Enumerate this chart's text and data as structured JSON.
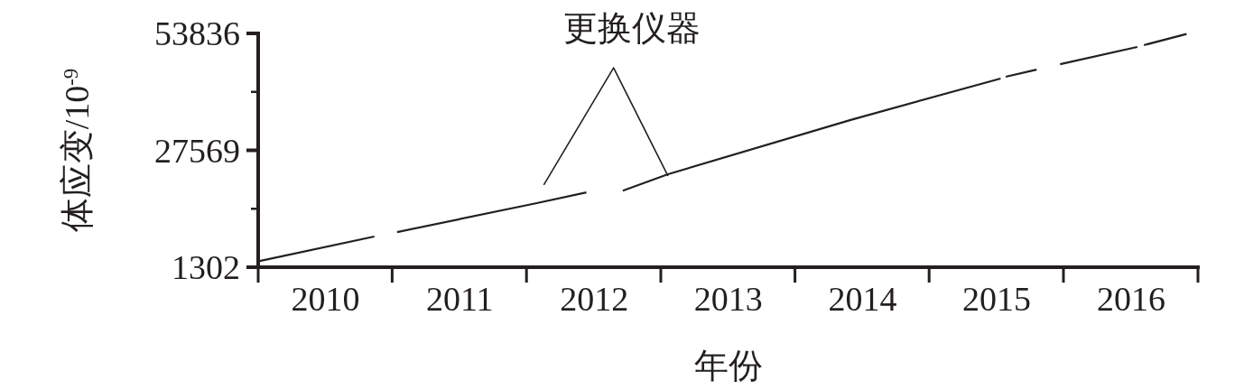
{
  "chart_data": {
    "type": "line",
    "xlabel": "年份",
    "ylabel": "体应变/10$^{-9}$",
    "annotations": [
      "更换仪器"
    ],
    "x": [
      "2010-01-05",
      "2010-11-13",
      "2010-12-01",
      "2011-01-14",
      "2012-01-29",
      "2012-06-12",
      "2012-07-15",
      "2012-09-19",
      "2013-01-20",
      "2014-06-01",
      "2015-07-14",
      "2015-07-20",
      "2015-07-28",
      "2015-10-20",
      "2015-11-20",
      "2015-12-23",
      "2016-07-20",
      "2016-07-28",
      "2016-08-07",
      "2016-12-01"
    ],
    "series": [
      {
        "color": "#231f20",
        "values": [
          2700,
          8200,
          null,
          9200,
          15700,
          18100,
          null,
          18500,
          22200,
          34400,
          43700,
          null,
          44100,
          45700,
          null,
          46900,
          50800,
          null,
          51200,
          53700
        ]
      },
      {
        "color": "#231f20",
        "x": [
          "2012-02-17",
          "2012-08-25",
          "2013-01-20"
        ],
        "values": [
          19800,
          46100,
          21800
        ]
      }
    ],
    "xlim": [
      "2010-01-01",
      "2017-01-01"
    ],
    "xticks": [
      {
        "value": "2010-07-02",
        "label": "2010"
      },
      {
        "value": "2011-07-02",
        "label": "2011"
      },
      {
        "value": "2012-07-02",
        "label": "2012"
      },
      {
        "value": "2013-07-02",
        "label": "2013"
      },
      {
        "value": "2014-07-02",
        "label": "2014"
      },
      {
        "value": "2015-07-02",
        "label": "2015"
      },
      {
        "value": "2016-07-02",
        "label": "2016"
      }
    ],
    "ylim": [
      1302,
      53836
    ],
    "yticks": [
      1302,
      {
        "value": 14435,
        "label": null
      },
      27569,
      {
        "value": 40702,
        "label": null
      },
      53836
    ],
    "grid": false,
    "marker": "none",
    "line_style": "solid"
  }
}
